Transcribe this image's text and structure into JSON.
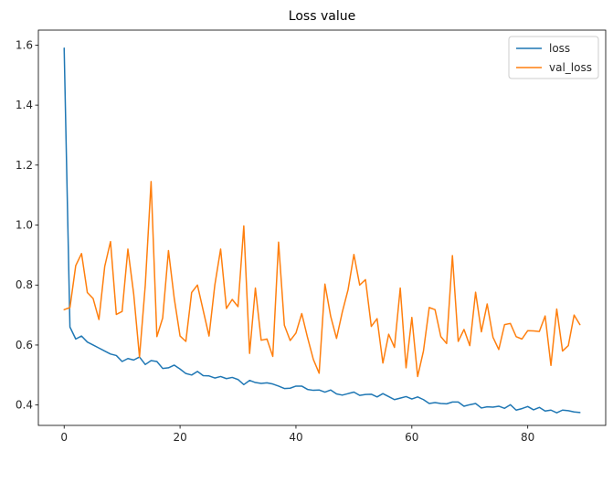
{
  "chart_data": {
    "type": "line",
    "title": "Loss value",
    "xlabel": "",
    "ylabel": "",
    "xlim": [
      -4.45,
      93.45
    ],
    "ylim": [
      0.332,
      1.65
    ],
    "xticks": [
      0,
      20,
      40,
      60,
      80
    ],
    "yticks": [
      0.4,
      0.6,
      0.8,
      1.0,
      1.2,
      1.4,
      1.6
    ],
    "ytick_labels": [
      "0.4",
      "0.6",
      "0.8",
      "1.0",
      "1.2",
      "1.4",
      "1.6"
    ],
    "grid": false,
    "legend": "top-right",
    "series": [
      {
        "name": "loss",
        "color": "#1f77b4",
        "values": [
          1.59,
          0.66,
          0.62,
          0.63,
          0.61,
          0.6,
          0.59,
          0.58,
          0.57,
          0.565,
          0.545,
          0.555,
          0.55,
          0.56,
          0.535,
          0.548,
          0.545,
          0.522,
          0.524,
          0.533,
          0.52,
          0.505,
          0.5,
          0.512,
          0.498,
          0.497,
          0.49,
          0.495,
          0.488,
          0.492,
          0.485,
          0.468,
          0.482,
          0.475,
          0.472,
          0.474,
          0.47,
          0.463,
          0.455,
          0.456,
          0.463,
          0.463,
          0.452,
          0.449,
          0.45,
          0.443,
          0.45,
          0.437,
          0.433,
          0.438,
          0.443,
          0.432,
          0.435,
          0.436,
          0.427,
          0.438,
          0.428,
          0.418,
          0.423,
          0.428,
          0.42,
          0.427,
          0.418,
          0.405,
          0.408,
          0.405,
          0.404,
          0.41,
          0.41,
          0.396,
          0.401,
          0.405,
          0.39,
          0.394,
          0.393,
          0.396,
          0.389,
          0.401,
          0.383,
          0.388,
          0.395,
          0.384,
          0.392,
          0.38,
          0.383,
          0.374,
          0.383,
          0.381,
          0.377,
          0.375
        ]
      },
      {
        "name": "val_loss",
        "color": "#ff7f0e",
        "values": [
          0.718,
          0.725,
          0.865,
          0.905,
          0.775,
          0.755,
          0.685,
          0.862,
          0.945,
          0.702,
          0.712,
          0.92,
          0.77,
          0.56,
          0.8,
          1.145,
          0.628,
          0.69,
          0.915,
          0.755,
          0.63,
          0.612,
          0.775,
          0.8,
          0.715,
          0.63,
          0.8,
          0.92,
          0.722,
          0.752,
          0.728,
          0.997,
          0.572,
          0.79,
          0.616,
          0.62,
          0.562,
          0.943,
          0.666,
          0.615,
          0.64,
          0.705,
          0.625,
          0.552,
          0.506,
          0.803,
          0.695,
          0.622,
          0.71,
          0.785,
          0.902,
          0.8,
          0.818,
          0.662,
          0.688,
          0.54,
          0.636,
          0.592,
          0.79,
          0.524,
          0.692,
          0.495,
          0.58,
          0.725,
          0.718,
          0.628,
          0.605,
          0.898,
          0.612,
          0.652,
          0.598,
          0.776,
          0.644,
          0.737,
          0.626,
          0.585,
          0.668,
          0.672,
          0.628,
          0.62,
          0.648,
          0.647,
          0.645,
          0.697,
          0.532,
          0.72,
          0.58,
          0.598,
          0.7,
          0.668
        ]
      }
    ]
  }
}
